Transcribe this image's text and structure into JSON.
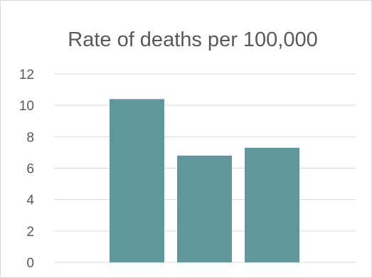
{
  "chart_data": {
    "type": "bar",
    "title": "Rate of deaths per 100,000",
    "categories": [
      "",
      "",
      ""
    ],
    "values": [
      10.4,
      6.8,
      7.3
    ],
    "ylim": [
      0,
      12
    ],
    "yticks": [
      "0",
      "2",
      "4",
      "6",
      "8",
      "10",
      "12"
    ],
    "xlabel": "",
    "ylabel": "",
    "grid": true,
    "legend": "none",
    "colors": {
      "bar": "#61979b",
      "grid": "#d9d9d9",
      "text": "#595959",
      "border": "#d9d9d9"
    }
  }
}
